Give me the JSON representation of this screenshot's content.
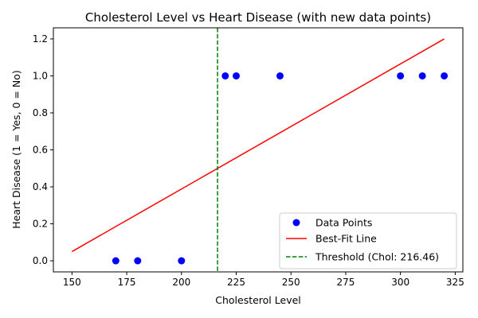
{
  "chart_data": {
    "type": "scatter",
    "title": "Cholesterol Level vs Heart Disease (with new data points)",
    "xlabel": "Cholesterol Level",
    "ylabel": "Heart Disease (1 = Yes, 0 = No)",
    "xlim": [
      141.5,
      328.5
    ],
    "ylim": [
      -0.06,
      1.26
    ],
    "xticks": [
      150,
      175,
      200,
      225,
      250,
      275,
      300,
      325
    ],
    "yticks": [
      0.0,
      0.2,
      0.4,
      0.6,
      0.8,
      1.0,
      1.2
    ],
    "xtick_labels": [
      "150",
      "175",
      "200",
      "225",
      "250",
      "275",
      "300",
      "325"
    ],
    "ytick_labels": [
      "0.0",
      "0.2",
      "0.4",
      "0.6",
      "0.8",
      "1.0",
      "1.2"
    ],
    "grid": false,
    "legend_position": "lower-right",
    "series": [
      {
        "name": "Data Points",
        "kind": "scatter",
        "color": "#0000ff",
        "x": [
          170,
          180,
          200,
          220,
          225,
          245,
          300,
          310,
          320
        ],
        "y": [
          0,
          0,
          0,
          1,
          1,
          1,
          1,
          1,
          1
        ]
      },
      {
        "name": "Best-Fit Line",
        "kind": "line",
        "color": "#ff0000",
        "x": [
          150,
          320
        ],
        "y": [
          0.05,
          1.2
        ]
      },
      {
        "name": "Threshold (Chol: 216.46)",
        "kind": "vline",
        "color": "#008000",
        "style": "dashed",
        "x": 216.46
      }
    ]
  }
}
